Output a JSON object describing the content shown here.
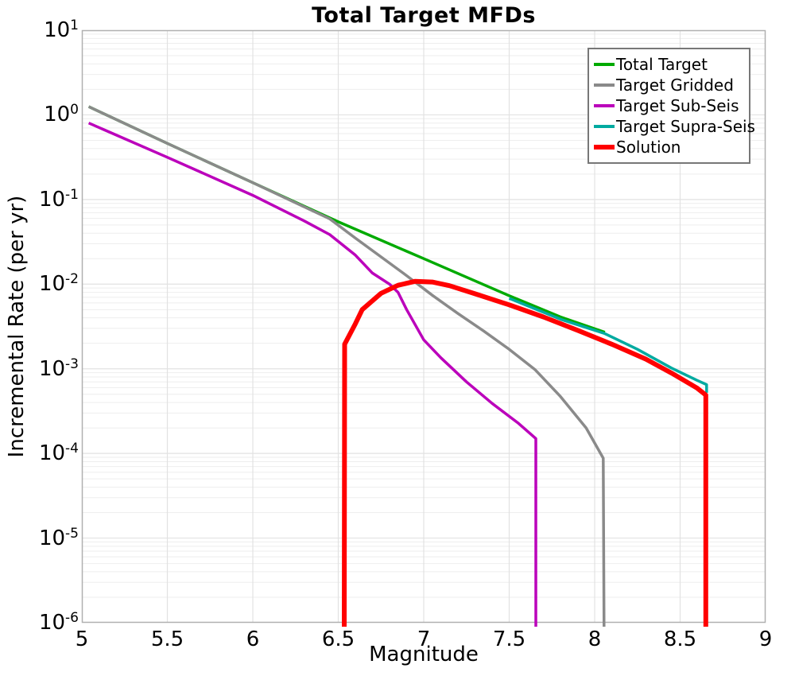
{
  "chart_data": {
    "type": "line",
    "title": "Total Target MFDs",
    "xlabel": "Magnitude",
    "ylabel": "Incremental Rate (per yr)",
    "x_range": [
      5,
      9
    ],
    "y_range": [
      1e-06,
      10
    ],
    "y_scale": "log",
    "x_ticks": [
      5,
      5.5,
      6,
      6.5,
      7,
      7.5,
      8,
      8.5,
      9
    ],
    "x_tick_labels": [
      "5",
      "5.5",
      "6",
      "6.5",
      "7",
      "7.5",
      "8",
      "8.5",
      "9"
    ],
    "y_tick_exponents": [
      1,
      0,
      -1,
      -2,
      -3,
      -4,
      -5,
      -6
    ],
    "grid": true,
    "x_gridlines": [
      5.5,
      6,
      6.5,
      7,
      7.5,
      8,
      8.5
    ],
    "legend_position": "upper right",
    "frame_color": "#b0b0b0",
    "grid_major_color": "#e2e2e2",
    "grid_minor_color": "#eeeeee",
    "series": [
      {
        "name": "Total Target",
        "slug": "total-target",
        "color": "#00aa00",
        "width": 3.5,
        "points": [
          [
            5.04,
            1.25
          ],
          [
            5.5,
            0.46
          ],
          [
            6.0,
            0.158
          ],
          [
            6.5,
            0.0545
          ],
          [
            7.0,
            0.02
          ],
          [
            7.5,
            0.0073
          ],
          [
            7.8,
            0.0041
          ],
          [
            8.06,
            0.0027
          ]
        ]
      },
      {
        "name": "Target Gridded",
        "slug": "target-gridded",
        "color": "#8a8a8a",
        "width": 3.5,
        "points": [
          [
            5.04,
            1.25
          ],
          [
            5.5,
            0.46
          ],
          [
            6.0,
            0.158
          ],
          [
            6.45,
            0.059
          ],
          [
            6.6,
            0.035
          ],
          [
            6.75,
            0.021
          ],
          [
            6.9,
            0.0126
          ],
          [
            7.05,
            0.0074
          ],
          [
            7.2,
            0.0045
          ],
          [
            7.35,
            0.0028
          ],
          [
            7.5,
            0.0017
          ],
          [
            7.65,
            0.00098
          ],
          [
            7.8,
            0.00047
          ],
          [
            7.95,
            0.0002
          ],
          [
            8.05,
            8.8e-05
          ],
          [
            8.055,
            1e-06
          ]
        ]
      },
      {
        "name": "Target Sub-Seis",
        "slug": "target-sub-seis",
        "color": "#bb00bb",
        "width": 3.5,
        "points": [
          [
            5.04,
            0.8
          ],
          [
            5.5,
            0.315
          ],
          [
            6.0,
            0.112
          ],
          [
            6.3,
            0.056
          ],
          [
            6.45,
            0.0385
          ],
          [
            6.6,
            0.022
          ],
          [
            6.7,
            0.0135
          ],
          [
            6.8,
            0.01
          ],
          [
            6.85,
            0.008
          ],
          [
            6.9,
            0.005
          ],
          [
            7.0,
            0.0022
          ],
          [
            7.1,
            0.00135
          ],
          [
            7.25,
            0.0007
          ],
          [
            7.4,
            0.00039
          ],
          [
            7.55,
            0.00023
          ],
          [
            7.656,
            0.00015
          ],
          [
            7.656,
            1e-06
          ]
        ]
      },
      {
        "name": "Target Supra-Seis",
        "slug": "target-supra-seis",
        "color": "#00aaa0",
        "width": 3.5,
        "points": [
          [
            7.5,
            0.0068
          ],
          [
            7.8,
            0.00385
          ],
          [
            8.06,
            0.0026
          ],
          [
            8.25,
            0.0017
          ],
          [
            8.45,
            0.00102
          ],
          [
            8.6,
            0.00073
          ],
          [
            8.655,
            0.00065
          ],
          [
            8.655,
            0.00052
          ]
        ]
      },
      {
        "name": "Solution",
        "slug": "solution",
        "color": "#ff0000",
        "width": 6,
        "points": [
          [
            6.535,
            1e-06
          ],
          [
            6.537,
            0.00195
          ],
          [
            6.6,
            0.0034
          ],
          [
            6.64,
            0.005
          ],
          [
            6.75,
            0.0078
          ],
          [
            6.85,
            0.0097
          ],
          [
            6.95,
            0.0108
          ],
          [
            7.05,
            0.0106
          ],
          [
            7.15,
            0.0096
          ],
          [
            7.3,
            0.0077
          ],
          [
            7.5,
            0.0057
          ],
          [
            7.7,
            0.0041
          ],
          [
            7.9,
            0.00285
          ],
          [
            8.1,
            0.00195
          ],
          [
            8.3,
            0.0013
          ],
          [
            8.45,
            0.00089
          ],
          [
            8.6,
            0.00059
          ],
          [
            8.65,
            0.00049
          ],
          [
            8.65,
            1e-06
          ]
        ]
      }
    ],
    "legend": {
      "items": [
        {
          "label": "Total Target",
          "slug": "total-target",
          "color": "#00aa00",
          "line_height": 4
        },
        {
          "label": "Target Gridded",
          "slug": "target-gridded",
          "color": "#8a8a8a",
          "line_height": 4
        },
        {
          "label": "Target Sub-Seis",
          "slug": "target-sub-seis",
          "color": "#bb00bb",
          "line_height": 4
        },
        {
          "label": "Target Supra-Seis",
          "slug": "target-supra-seis",
          "color": "#00aaa0",
          "line_height": 4
        },
        {
          "label": "Solution",
          "slug": "solution",
          "color": "#ff0000",
          "line_height": 6
        }
      ]
    }
  }
}
